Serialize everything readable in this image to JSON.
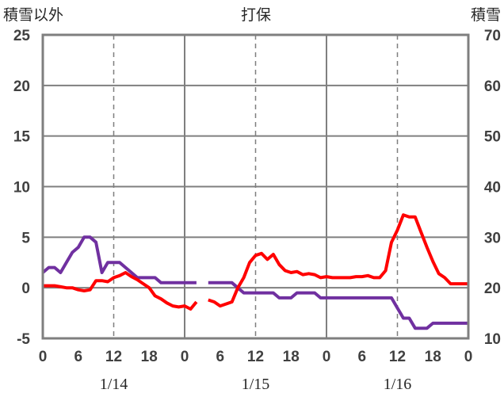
{
  "chart_data": {
    "type": "line",
    "title": "打保",
    "ylabel_left": "積雪以外",
    "ylabel_right": "積雪",
    "ylim_left": [
      -5,
      25
    ],
    "yticks_left": [
      25,
      20,
      15,
      10,
      5,
      0,
      -5
    ],
    "ylim_right": [
      10,
      70
    ],
    "yticks_right": [
      70,
      60,
      50,
      40,
      30,
      20,
      10
    ],
    "xlim": [
      0,
      72
    ],
    "xtick_labels": [
      "0",
      "6",
      "12",
      "18",
      "0",
      "6",
      "12",
      "18",
      "0",
      "6",
      "12",
      "18",
      "0"
    ],
    "day_labels": [
      "1/14",
      "1/15",
      "1/16"
    ],
    "grid": true,
    "series": [
      {
        "color": "#7030a0",
        "axis": "left",
        "x": [
          0,
          1,
          2,
          3,
          4,
          5,
          6,
          7,
          8,
          9,
          10,
          11,
          12,
          13,
          14,
          15,
          16,
          17,
          18,
          19,
          20,
          21,
          22,
          23,
          24,
          25,
          26,
          null,
          28,
          29,
          30,
          31,
          32,
          33,
          34,
          35,
          36,
          37,
          38,
          39,
          40,
          41,
          42,
          43,
          44,
          45,
          46,
          47,
          48,
          49,
          50,
          51,
          52,
          53,
          54,
          55,
          56,
          57,
          58,
          59,
          60,
          61,
          62,
          63,
          64,
          65,
          66,
          67,
          68,
          69,
          70,
          71,
          72
        ],
        "values": [
          1.5,
          2,
          2,
          1.5,
          2.5,
          3.5,
          4,
          5,
          5,
          4.5,
          1.5,
          2.5,
          2.5,
          2.5,
          2,
          1.5,
          1,
          1,
          1,
          1,
          0.5,
          0.5,
          0.5,
          0.5,
          0.5,
          0.5,
          0.5,
          null,
          0.5,
          0.5,
          0.5,
          0.5,
          0.5,
          0,
          -0.5,
          -0.5,
          -0.5,
          -0.5,
          -0.5,
          -0.5,
          -1,
          -1,
          -1,
          -0.5,
          -0.5,
          -0.5,
          -0.5,
          -1,
          -1,
          -1,
          -1,
          -1,
          -1,
          -1,
          -1,
          -1,
          -1,
          -1,
          -1,
          -1,
          -2,
          -3,
          -3,
          -4,
          -4,
          -4,
          -3.5,
          -3.5,
          -3.5,
          -3.5,
          -3.5,
          -3.5,
          -3.5
        ]
      },
      {
        "color": "#ff0000",
        "axis": "left",
        "x": [
          0,
          1,
          2,
          3,
          4,
          5,
          6,
          7,
          8,
          9,
          10,
          11,
          12,
          13,
          14,
          15,
          16,
          17,
          18,
          19,
          20,
          21,
          22,
          23,
          24,
          25,
          26,
          null,
          28,
          29,
          30,
          31,
          32,
          33,
          34,
          35,
          36,
          37,
          38,
          39,
          40,
          41,
          42,
          43,
          44,
          45,
          46,
          47,
          48,
          49,
          50,
          51,
          52,
          53,
          54,
          55,
          56,
          57,
          58,
          59,
          60,
          61,
          62,
          63,
          64,
          65,
          66,
          67,
          68,
          69,
          70,
          71,
          72
        ],
        "values": [
          0.2,
          0.2,
          0.2,
          0.1,
          0,
          0,
          -0.2,
          -0.3,
          -0.2,
          0.7,
          0.7,
          0.6,
          1,
          1.2,
          1.5,
          1.1,
          0.8,
          0.4,
          0,
          -0.8,
          -1.1,
          -1.5,
          -1.8,
          -1.9,
          -1.8,
          -2.1,
          -1.4,
          null,
          -1.2,
          -1.4,
          -1.8,
          -1.6,
          -1.4,
          0,
          1,
          2.5,
          3.2,
          3.4,
          2.8,
          3.3,
          2.3,
          1.7,
          1.5,
          1.6,
          1.3,
          1.4,
          1.3,
          1,
          1.1,
          1,
          1,
          1,
          1,
          1.1,
          1.1,
          1.2,
          1,
          1,
          1.7,
          4.5,
          5.7,
          7.2,
          7,
          7,
          5.5,
          4,
          2.6,
          1.4,
          1,
          0.4,
          0.4,
          0.4,
          0.4
        ]
      }
    ]
  }
}
